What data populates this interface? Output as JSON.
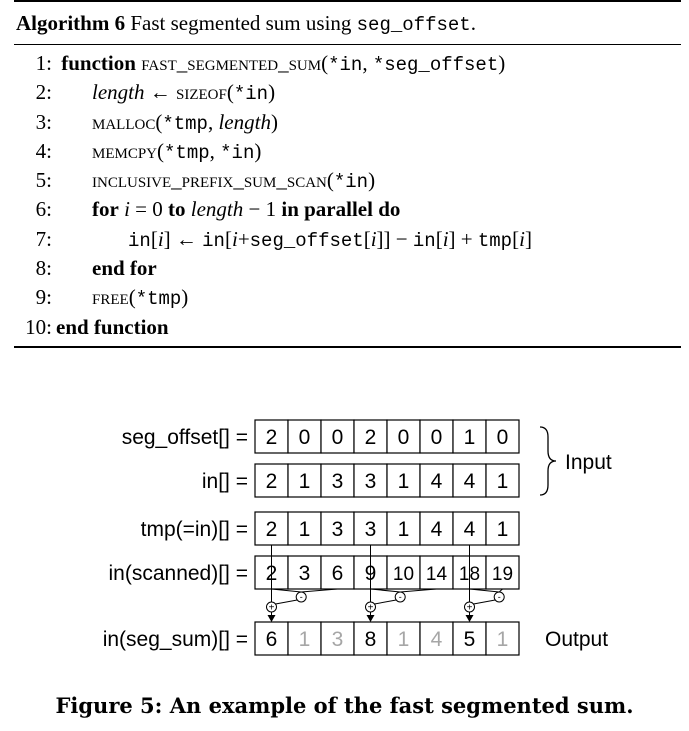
{
  "algorithm": {
    "label": "Algorithm 6",
    "title": "Fast segmented sum using",
    "title_code": "seg_offset",
    "title_end": ".",
    "lines": [
      {
        "num": "1:",
        "text": "function",
        "extra": "FAST_SEGMENTED_SUM(*in, *seg_offset)"
      },
      {
        "num": "2:",
        "text": "length ← SIZEOF(*in)"
      },
      {
        "num": "3:",
        "text": "MALLOC(*tmp, length)"
      },
      {
        "num": "4:",
        "text": "MEMCPY(*tmp, *in)"
      },
      {
        "num": "5:",
        "text": "INCLUSIVE_PREFIX_SUM_SCAN(*in)"
      },
      {
        "num": "6:",
        "text": "for i = 0 to length − 1 in parallel do"
      },
      {
        "num": "7:",
        "text": "in[i] ← in[i+seg_offset[i]] − in[i] + tmp[i]"
      },
      {
        "num": "8:",
        "text": "end for"
      },
      {
        "num": "9:",
        "text": "FREE(*tmp)"
      },
      {
        "num": "10:",
        "text": "end function"
      }
    ]
  },
  "figure": {
    "rows": [
      {
        "label": "seg_offset[] =",
        "values": [
          "2",
          "0",
          "0",
          "2",
          "0",
          "0",
          "1",
          "0"
        ]
      },
      {
        "label": "in[] =",
        "values": [
          "2",
          "1",
          "3",
          "3",
          "1",
          "4",
          "4",
          "1"
        ]
      },
      {
        "label": "tmp(=in)[] =",
        "values": [
          "2",
          "1",
          "3",
          "3",
          "1",
          "4",
          "4",
          "1"
        ]
      },
      {
        "label": "in(scanned)[] =",
        "values": [
          "2",
          "3",
          "6",
          "9",
          "10",
          "14",
          "18",
          "19"
        ]
      },
      {
        "label": "in(seg_sum)[] =",
        "values": [
          "6",
          "1",
          "3",
          "8",
          "1",
          "4",
          "5",
          "1"
        ],
        "grey": [
          false,
          true,
          true,
          false,
          true,
          true,
          false,
          true
        ]
      }
    ],
    "input_label": "Input",
    "output_label": "Output",
    "plus_symbol": "+",
    "minus_symbol": "-",
    "caption": "Figure 5: An example of the fast segmented sum.",
    "colors": {
      "line": "#000000",
      "grey_text": "#a6a6a6",
      "cell_border": "#000000"
    }
  }
}
